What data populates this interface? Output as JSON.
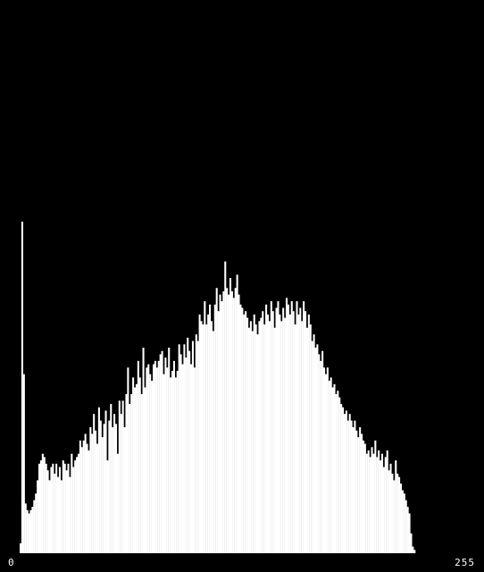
{
  "chart_data": {
    "type": "bar",
    "title": "",
    "xlabel": "",
    "ylabel": "",
    "xlim": [
      0,
      255
    ],
    "ylim": [
      0,
      1.0
    ],
    "grid": false,
    "legend": "none",
    "tick_labels": {
      "min": "0",
      "max": "255"
    },
    "colors": {
      "background": "#000000",
      "bars": "#ffffff",
      "text": "#ffffff"
    },
    "values": [
      0.03,
      1.0,
      0.54,
      0.15,
      0.13,
      0.12,
      0.13,
      0.14,
      0.16,
      0.18,
      0.22,
      0.27,
      0.28,
      0.3,
      0.29,
      0.27,
      0.25,
      0.22,
      0.26,
      0.27,
      0.24,
      0.27,
      0.23,
      0.26,
      0.22,
      0.28,
      0.27,
      0.25,
      0.27,
      0.23,
      0.3,
      0.26,
      0.28,
      0.29,
      0.3,
      0.34,
      0.32,
      0.34,
      0.36,
      0.33,
      0.31,
      0.38,
      0.36,
      0.42,
      0.37,
      0.33,
      0.44,
      0.4,
      0.35,
      0.39,
      0.43,
      0.28,
      0.4,
      0.45,
      0.38,
      0.42,
      0.39,
      0.3,
      0.46,
      0.42,
      0.46,
      0.38,
      0.48,
      0.56,
      0.45,
      0.48,
      0.53,
      0.5,
      0.51,
      0.58,
      0.53,
      0.48,
      0.62,
      0.5,
      0.56,
      0.57,
      0.54,
      0.52,
      0.57,
      0.58,
      0.56,
      0.58,
      0.6,
      0.61,
      0.54,
      0.59,
      0.56,
      0.62,
      0.53,
      0.55,
      0.58,
      0.53,
      0.55,
      0.63,
      0.6,
      0.57,
      0.63,
      0.59,
      0.65,
      0.61,
      0.57,
      0.64,
      0.56,
      0.66,
      0.64,
      0.72,
      0.7,
      0.69,
      0.76,
      0.69,
      0.72,
      0.75,
      0.7,
      0.67,
      0.75,
      0.8,
      0.73,
      0.78,
      0.76,
      0.79,
      0.88,
      0.8,
      0.78,
      0.83,
      0.79,
      0.77,
      0.8,
      0.84,
      0.78,
      0.75,
      0.74,
      0.72,
      0.73,
      0.71,
      0.68,
      0.7,
      0.67,
      0.72,
      0.69,
      0.66,
      0.7,
      0.71,
      0.73,
      0.69,
      0.75,
      0.72,
      0.7,
      0.76,
      0.73,
      0.68,
      0.74,
      0.76,
      0.72,
      0.7,
      0.74,
      0.71,
      0.77,
      0.75,
      0.72,
      0.76,
      0.73,
      0.69,
      0.76,
      0.72,
      0.74,
      0.7,
      0.76,
      0.73,
      0.68,
      0.72,
      0.69,
      0.64,
      0.66,
      0.62,
      0.63,
      0.6,
      0.58,
      0.61,
      0.56,
      0.54,
      0.56,
      0.52,
      0.53,
      0.5,
      0.51,
      0.48,
      0.49,
      0.47,
      0.45,
      0.44,
      0.42,
      0.43,
      0.4,
      0.42,
      0.4,
      0.38,
      0.4,
      0.37,
      0.35,
      0.38,
      0.36,
      0.34,
      0.33,
      0.3,
      0.31,
      0.29,
      0.32,
      0.3,
      0.34,
      0.29,
      0.31,
      0.28,
      0.3,
      0.26,
      0.29,
      0.31,
      0.25,
      0.27,
      0.24,
      0.22,
      0.28,
      0.24,
      0.23,
      0.21,
      0.19,
      0.18,
      0.16,
      0.14,
      0.12,
      0.06,
      0.02,
      0.01,
      0.0,
      0.0,
      0.0,
      0.0,
      0.0,
      0.0,
      0.0,
      0.0,
      0.0,
      0.0,
      0.0,
      0.0,
      0.0,
      0.0,
      0.0,
      0.0,
      0.0,
      0.0,
      0.0,
      0.0,
      0.0,
      0.0,
      0.0,
      0.0
    ]
  }
}
